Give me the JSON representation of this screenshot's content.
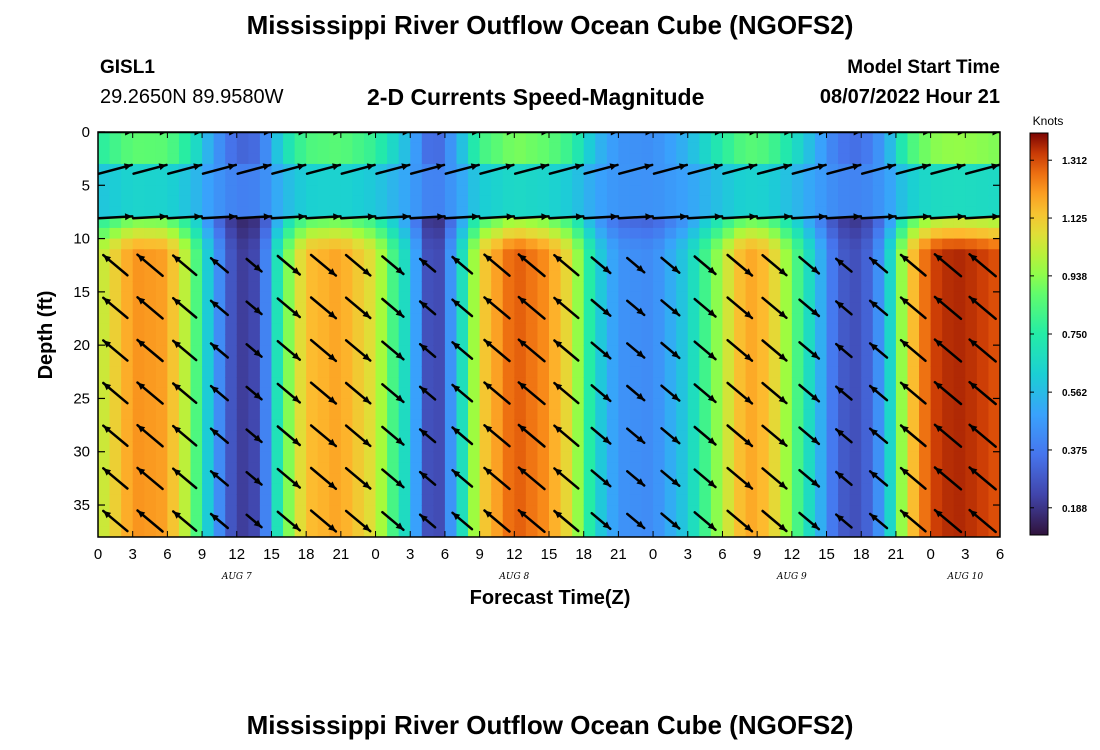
{
  "header": {
    "title": "Mississippi River Outflow Ocean Cube (NGOFS2)",
    "station_id": "GISL1",
    "coordinates": "29.2650N  89.9580W",
    "model_start_label": "Model Start Time",
    "model_start_value": "08/07/2022 Hour 21"
  },
  "footer": {
    "title": "Mississippi River Outflow Ocean Cube (NGOFS2)"
  },
  "chart_data": {
    "type": "heatmap",
    "title": "2-D Currents Speed-Magnitude",
    "xlabel": "Forecast Time(Z)",
    "ylabel": "Depth (ft)",
    "x_start_hour": 0,
    "x_end_hour": 78,
    "xlim_hours": [
      0,
      78
    ],
    "ylim": [
      0,
      38
    ],
    "y_inverted": true,
    "x_ticks": [
      "0",
      "3",
      "6",
      "9",
      "12",
      "15",
      "18",
      "21",
      "0",
      "3",
      "6",
      "9",
      "12",
      "15",
      "18",
      "21",
      "0",
      "3",
      "6",
      "9",
      "12",
      "15",
      "18",
      "21",
      "0",
      "3",
      "6"
    ],
    "y_ticks": [
      "0",
      "5",
      "10",
      "15",
      "20",
      "25",
      "30",
      "35"
    ],
    "day_labels": [
      {
        "label": "AUG 7",
        "hour": 12
      },
      {
        "label": "AUG 8",
        "hour": 36
      },
      {
        "label": "AUG 9",
        "hour": 60
      },
      {
        "label": "AUG 10",
        "hour": 75
      }
    ],
    "colorbar": {
      "label": "Knots",
      "min": 0.1,
      "max": 1.4,
      "ticks": [
        "0.188",
        "0.375",
        "0.562",
        "0.750",
        "0.938",
        "1.125",
        "1.312"
      ],
      "tick_values": [
        0.188,
        0.375,
        0.562,
        0.75,
        0.938,
        1.125,
        1.312
      ],
      "colormap": "turbo"
    },
    "speed_profile": {
      "hours": [
        0,
        3,
        6,
        8,
        10,
        12,
        14,
        16,
        18,
        21,
        24,
        27,
        29,
        31,
        33,
        36,
        39,
        41,
        43,
        45,
        48,
        51,
        54,
        56,
        58,
        60,
        63,
        64,
        66,
        68,
        70,
        72,
        74,
        76,
        78
      ],
      "deep_speed_knots": [
        1.0,
        1.22,
        1.2,
        0.95,
        0.5,
        0.2,
        0.25,
        0.85,
        1.15,
        1.2,
        1.05,
        0.6,
        0.15,
        0.55,
        1.1,
        1.3,
        1.22,
        1.05,
        0.65,
        0.45,
        0.42,
        0.62,
        1.0,
        1.2,
        1.15,
        0.9,
        0.45,
        0.3,
        0.25,
        0.5,
        1.1,
        1.32,
        1.36,
        1.34,
        1.3
      ],
      "direction": [
        -1,
        -1,
        -1,
        -1,
        -1,
        1,
        1,
        1,
        1,
        1,
        1,
        1,
        -1,
        -1,
        -1,
        -1,
        -1,
        -1,
        1,
        1,
        1,
        1,
        1,
        1,
        1,
        1,
        -1,
        -1,
        -1,
        -1,
        -1,
        -1,
        -1,
        -1,
        -1
      ]
    },
    "grid": false
  }
}
